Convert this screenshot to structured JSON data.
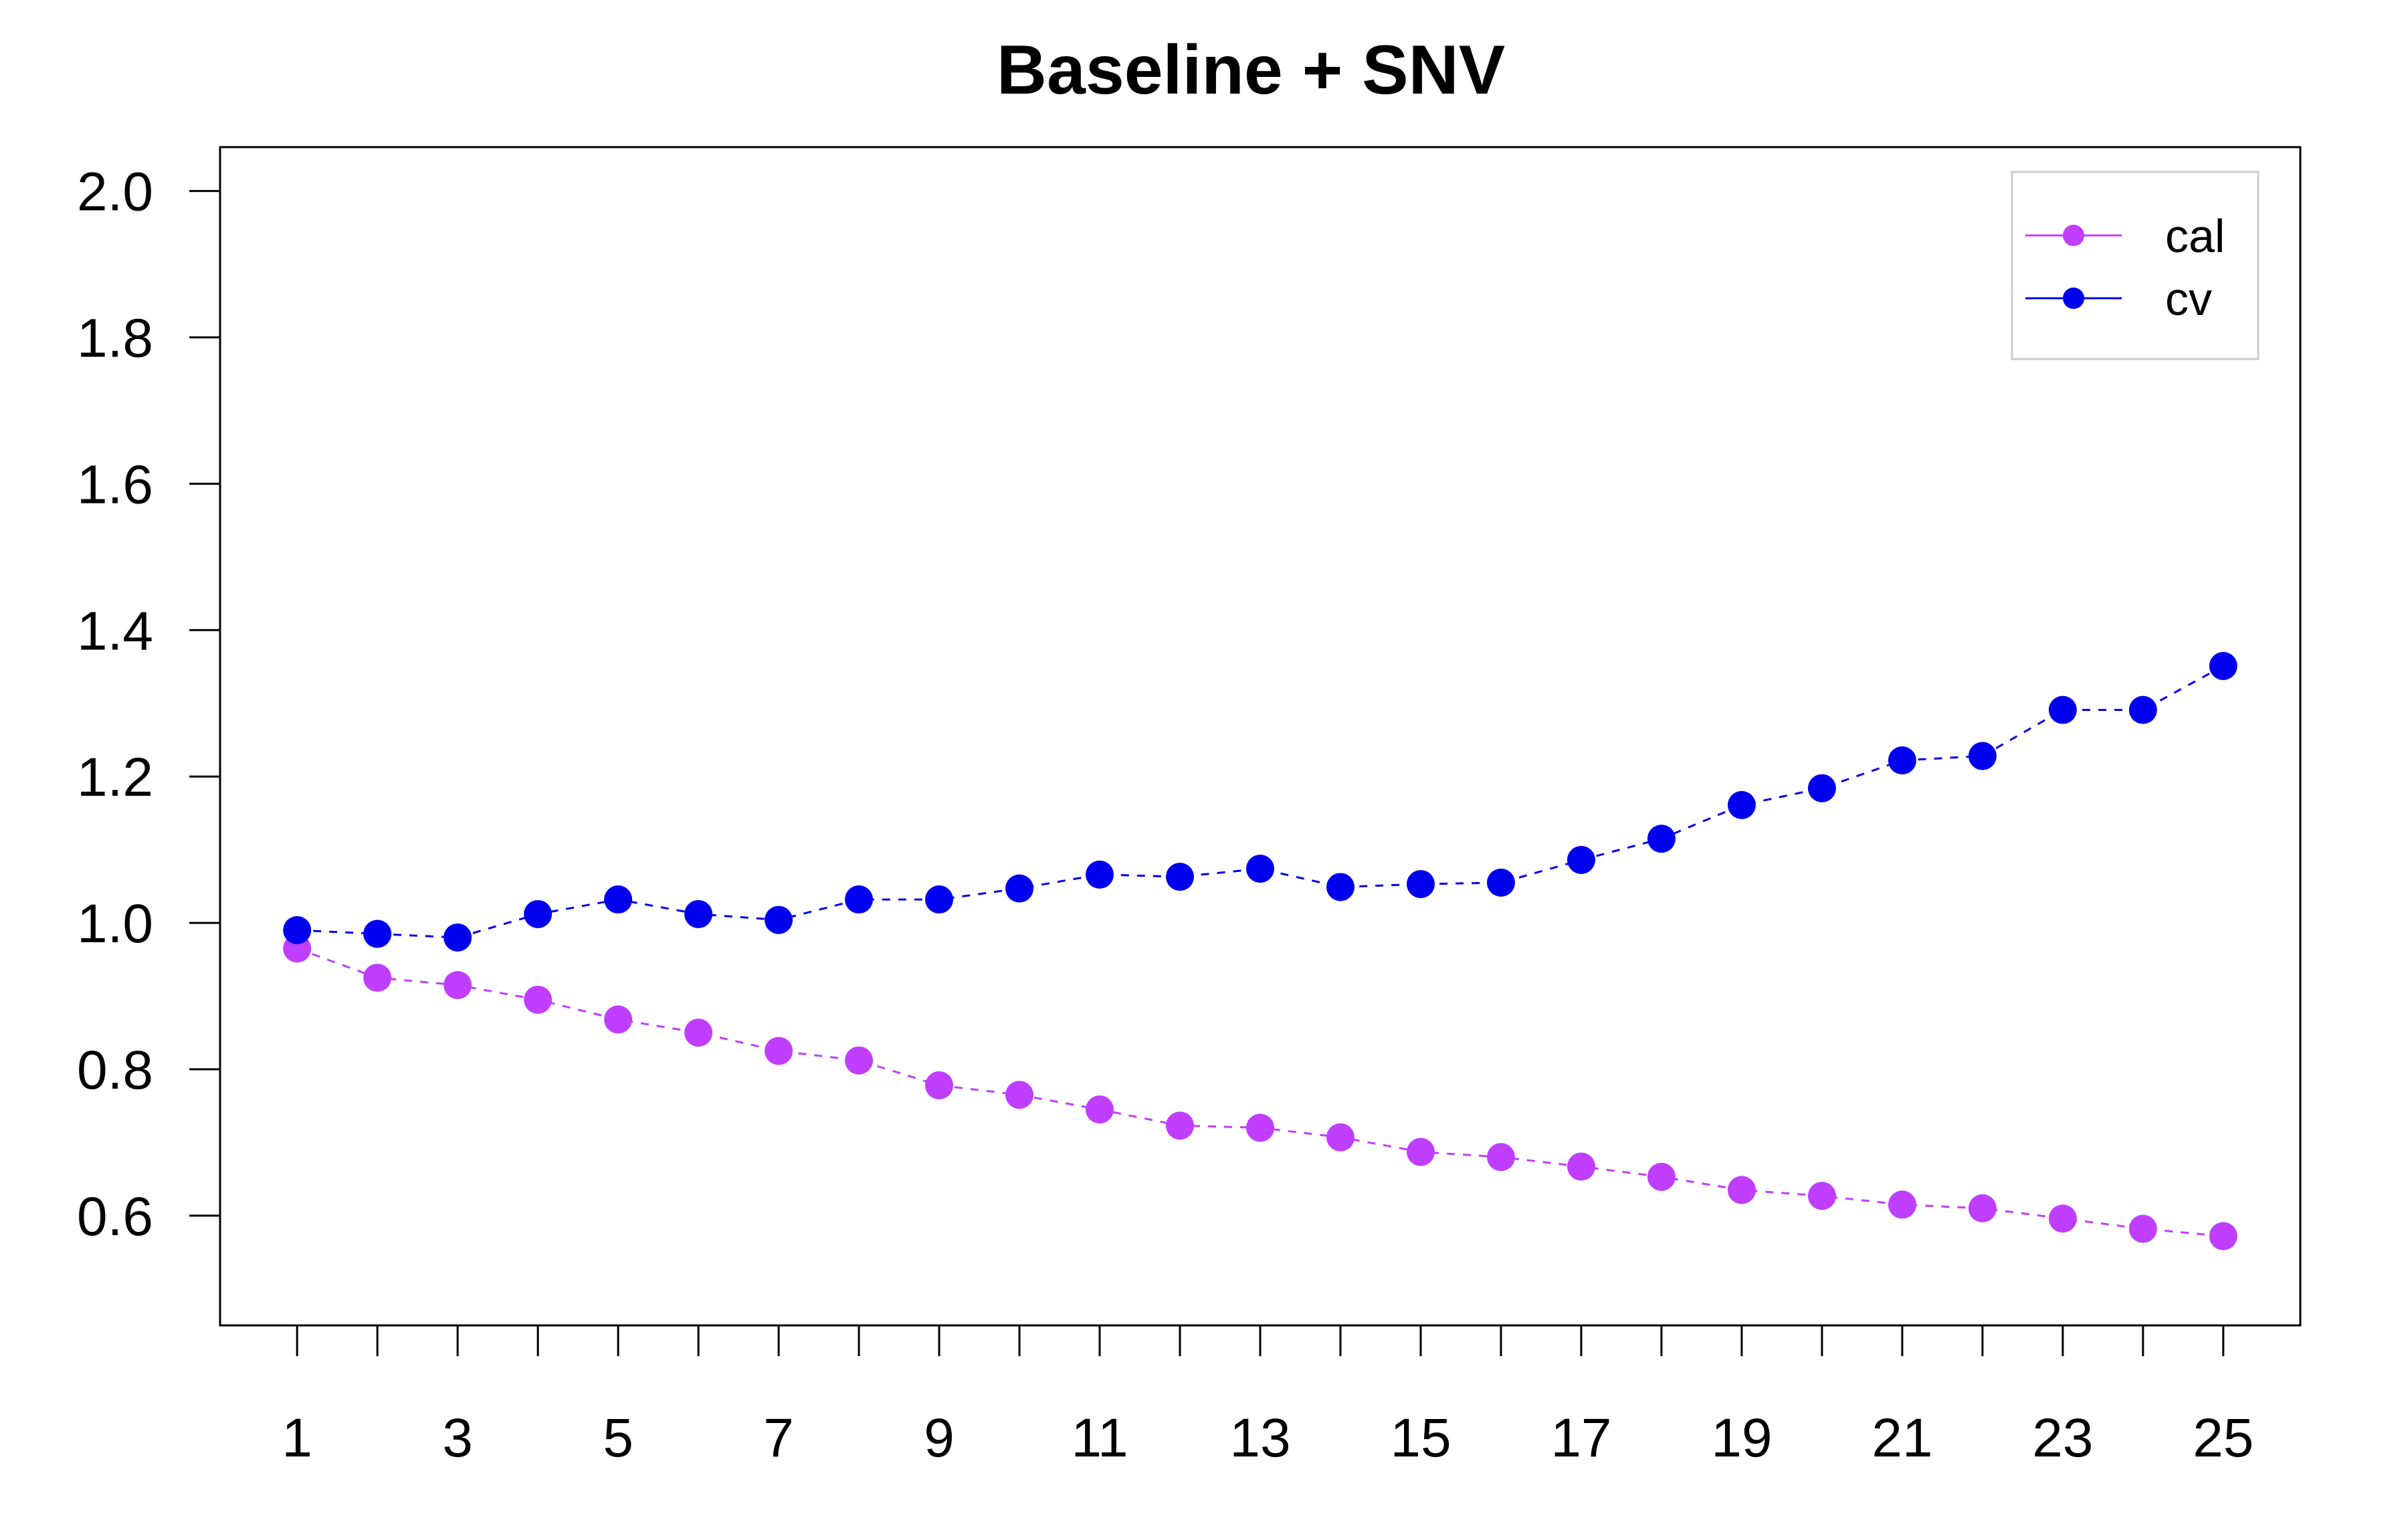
{
  "chart_data": {
    "type": "line",
    "title": "Baseline + SNV",
    "xlabel": "",
    "ylabel": "",
    "x": [
      1,
      2,
      3,
      4,
      5,
      6,
      7,
      8,
      9,
      10,
      11,
      12,
      13,
      14,
      15,
      16,
      17,
      18,
      19,
      20,
      21,
      22,
      23,
      24,
      25
    ],
    "x_tick_labels": [
      "1",
      "3",
      "5",
      "7",
      "9",
      "11",
      "13",
      "15",
      "17",
      "19",
      "21",
      "23",
      "25"
    ],
    "y_tick_labels": [
      "0.6",
      "0.8",
      "1.0",
      "1.2",
      "1.4",
      "1.6",
      "1.8",
      "2.0"
    ],
    "xlim": [
      0.04,
      25.96
    ],
    "ylim": [
      0.45,
      2.06
    ],
    "grid": false,
    "legend_position": "top-right",
    "series": [
      {
        "name": "cal",
        "color": "#BF3EFF",
        "line_style": "dashed",
        "marker": "filled-circle",
        "values": [
          0.965,
          0.925,
          0.915,
          0.895,
          0.868,
          0.85,
          0.825,
          0.812,
          0.778,
          0.765,
          0.745,
          0.723,
          0.72,
          0.707,
          0.687,
          0.68,
          0.667,
          0.653,
          0.635,
          0.627,
          0.615,
          0.61,
          0.596,
          0.582,
          0.572
        ]
      },
      {
        "name": "cv",
        "color": "#0000EE",
        "line_style": "dashed",
        "marker": "filled-circle",
        "values": [
          0.99,
          0.985,
          0.98,
          1.012,
          1.032,
          1.012,
          1.004,
          1.032,
          1.032,
          1.047,
          1.066,
          1.063,
          1.074,
          1.049,
          1.053,
          1.055,
          1.086,
          1.115,
          1.161,
          1.184,
          1.222,
          1.228,
          1.291,
          1.291,
          1.351
        ]
      }
    ]
  }
}
